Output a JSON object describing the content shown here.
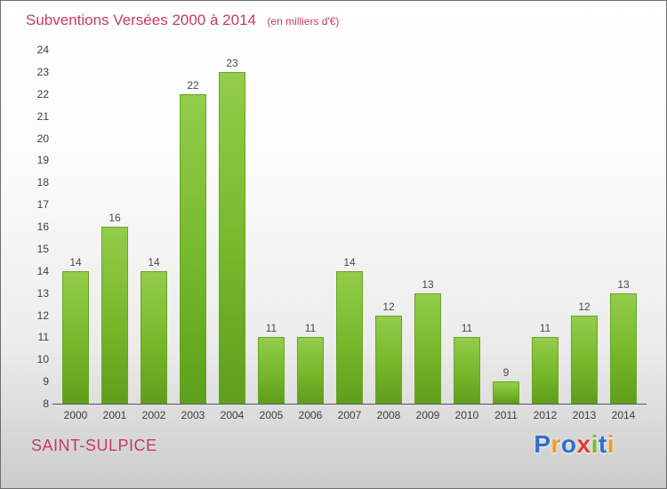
{
  "title": "Subventions Versées 2000 à 2014",
  "subtitle": "(en milliers d'€)",
  "footer": {
    "place": "SAINT-SULPICE",
    "logo": {
      "name": "Proxiti",
      "letters": [
        {
          "ch": "P",
          "color": "#2e6fc9"
        },
        {
          "ch": "r",
          "color": "#f09a1e"
        },
        {
          "ch": "o",
          "color": "#2e6fc9"
        },
        {
          "ch": "x",
          "color": "#e03a2f"
        },
        {
          "ch": "i",
          "color": "#79b928"
        },
        {
          "ch": "t",
          "color": "#2e6fc9"
        },
        {
          "ch": "i",
          "color": "#f09a1e"
        }
      ]
    }
  },
  "colors": {
    "accent_pink": "#c63a63",
    "bar_green": "#76b82a",
    "axis_text": "#3d3d3d"
  },
  "chart_data": {
    "type": "bar",
    "title": "Subventions Versées 2000 à 2014",
    "subtitle": "(en milliers d'€)",
    "categories": [
      "2000",
      "2001",
      "2002",
      "2003",
      "2004",
      "2005",
      "2006",
      "2007",
      "2008",
      "2009",
      "2010",
      "2011",
      "2012",
      "2013",
      "2014"
    ],
    "values": [
      14,
      16,
      14,
      22,
      23,
      11,
      11,
      14,
      12,
      13,
      11,
      9,
      11,
      12,
      13
    ],
    "xlabel": "",
    "ylabel": "",
    "ylim": [
      8,
      24
    ],
    "ytick_step": 1,
    "grid": false,
    "legend": false,
    "value_labels": true
  }
}
